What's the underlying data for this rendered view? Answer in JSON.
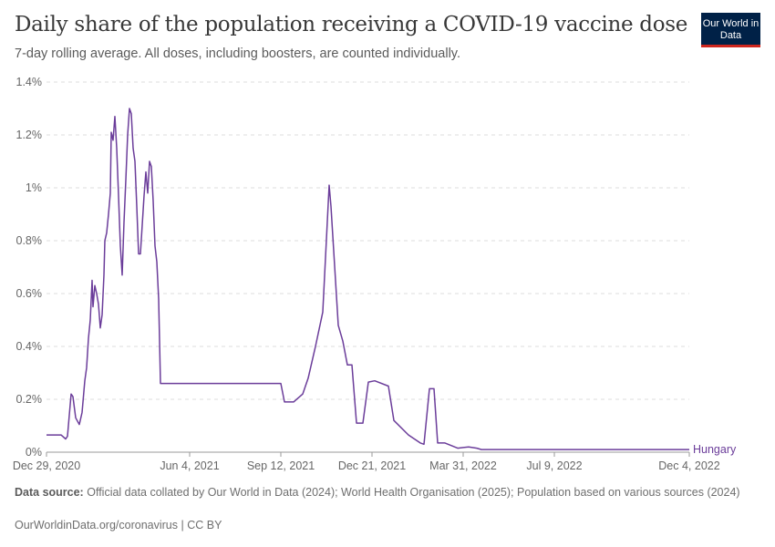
{
  "header": {
    "title": "Daily share of the population receiving a COVID-19 vaccine dose",
    "subtitle": "7-day rolling average. All doses, including boosters, are counted individually.",
    "logo": "Our World in Data"
  },
  "chart_data": {
    "type": "line",
    "title": "Daily share of the population receiving a COVID-19 vaccine dose",
    "subtitle": "7-day rolling average. All doses, including boosters, are counted individually.",
    "xlabel": "",
    "ylabel": "",
    "ylim": [
      0,
      1.4
    ],
    "y_ticks": [
      "0%",
      "0.2%",
      "0.4%",
      "0.6%",
      "0.8%",
      "1%",
      "1.2%",
      "1.4%"
    ],
    "y_tick_values": [
      0,
      0.2,
      0.4,
      0.6,
      0.8,
      1.0,
      1.2,
      1.4
    ],
    "x_ticks": [
      "Dec 29, 2020",
      "Jun 4, 2021",
      "Sep 12, 2021",
      "Dec 21, 2021",
      "Mar 31, 2022",
      "Jul 9, 2022",
      "Dec 4, 2022"
    ],
    "x_tick_dates": [
      "2020-12-29",
      "2021-06-04",
      "2021-09-12",
      "2021-12-21",
      "2022-03-31",
      "2022-07-09",
      "2022-12-04"
    ],
    "grid": true,
    "series": [
      {
        "name": "Hungary",
        "color": "#6b3d9a",
        "points": [
          [
            "2020-12-29",
            0.065
          ],
          [
            "2021-01-14",
            0.065
          ],
          [
            "2021-01-19",
            0.05
          ],
          [
            "2021-01-21",
            0.06
          ],
          [
            "2021-01-25",
            0.22
          ],
          [
            "2021-01-27",
            0.21
          ],
          [
            "2021-01-30",
            0.13
          ],
          [
            "2021-02-03",
            0.105
          ],
          [
            "2021-02-06",
            0.15
          ],
          [
            "2021-02-09",
            0.27
          ],
          [
            "2021-02-11",
            0.32
          ],
          [
            "2021-02-13",
            0.43
          ],
          [
            "2021-02-15",
            0.5
          ],
          [
            "2021-02-17",
            0.65
          ],
          [
            "2021-02-18",
            0.55
          ],
          [
            "2021-02-20",
            0.63
          ],
          [
            "2021-02-22",
            0.6
          ],
          [
            "2021-02-24",
            0.56
          ],
          [
            "2021-02-26",
            0.47
          ],
          [
            "2021-02-28",
            0.52
          ],
          [
            "2021-03-02",
            0.67
          ],
          [
            "2021-03-03",
            0.8
          ],
          [
            "2021-03-05",
            0.83
          ],
          [
            "2021-03-07",
            0.9
          ],
          [
            "2021-03-09",
            0.98
          ],
          [
            "2021-03-10",
            1.21
          ],
          [
            "2021-03-12",
            1.18
          ],
          [
            "2021-03-14",
            1.27
          ],
          [
            "2021-03-16",
            1.15
          ],
          [
            "2021-03-18",
            0.97
          ],
          [
            "2021-03-20",
            0.78
          ],
          [
            "2021-03-22",
            0.67
          ],
          [
            "2021-03-24",
            0.87
          ],
          [
            "2021-03-26",
            1.03
          ],
          [
            "2021-03-28",
            1.2
          ],
          [
            "2021-03-30",
            1.3
          ],
          [
            "2021-04-01",
            1.28
          ],
          [
            "2021-04-03",
            1.15
          ],
          [
            "2021-04-05",
            1.1
          ],
          [
            "2021-04-07",
            0.93
          ],
          [
            "2021-04-09",
            0.75
          ],
          [
            "2021-04-11",
            0.75
          ],
          [
            "2021-04-13",
            0.86
          ],
          [
            "2021-04-15",
            0.97
          ],
          [
            "2021-04-17",
            1.06
          ],
          [
            "2021-04-19",
            0.98
          ],
          [
            "2021-04-21",
            1.1
          ],
          [
            "2021-04-23",
            1.08
          ],
          [
            "2021-04-25",
            0.95
          ],
          [
            "2021-04-27",
            0.78
          ],
          [
            "2021-04-29",
            0.72
          ],
          [
            "2021-05-01",
            0.58
          ],
          [
            "2021-05-03",
            0.26
          ],
          [
            "2021-09-12",
            0.26
          ],
          [
            "2021-09-16",
            0.19
          ],
          [
            "2021-09-26",
            0.19
          ],
          [
            "2021-10-06",
            0.22
          ],
          [
            "2021-10-12",
            0.28
          ],
          [
            "2021-10-20",
            0.4
          ],
          [
            "2021-10-28",
            0.53
          ],
          [
            "2021-11-04",
            1.01
          ],
          [
            "2021-11-06",
            0.93
          ],
          [
            "2021-11-14",
            0.48
          ],
          [
            "2021-11-19",
            0.42
          ],
          [
            "2021-11-24",
            0.33
          ],
          [
            "2021-11-29",
            0.33
          ],
          [
            "2021-12-04",
            0.11
          ],
          [
            "2021-12-11",
            0.11
          ],
          [
            "2021-12-17",
            0.265
          ],
          [
            "2021-12-24",
            0.27
          ],
          [
            "2022-01-08",
            0.25
          ],
          [
            "2022-01-14",
            0.12
          ],
          [
            "2022-01-30",
            0.065
          ],
          [
            "2022-02-12",
            0.035
          ],
          [
            "2022-02-16",
            0.03
          ],
          [
            "2022-02-22",
            0.24
          ],
          [
            "2022-02-27",
            0.24
          ],
          [
            "2022-03-03",
            0.035
          ],
          [
            "2022-03-11",
            0.035
          ],
          [
            "2022-03-25",
            0.015
          ],
          [
            "2022-04-06",
            0.02
          ],
          [
            "2022-04-15",
            0.015
          ],
          [
            "2022-04-20",
            0.01
          ],
          [
            "2022-06-01",
            0.01
          ],
          [
            "2022-12-04",
            0.01
          ]
        ]
      }
    ]
  },
  "footer": {
    "source_label": "Data source:",
    "source_text": "Official data collated by Our World in Data (2024); World Health Organisation (2025); Population based on various sources (2024)",
    "site": "OurWorldinData.org/coronavirus | CC BY"
  }
}
